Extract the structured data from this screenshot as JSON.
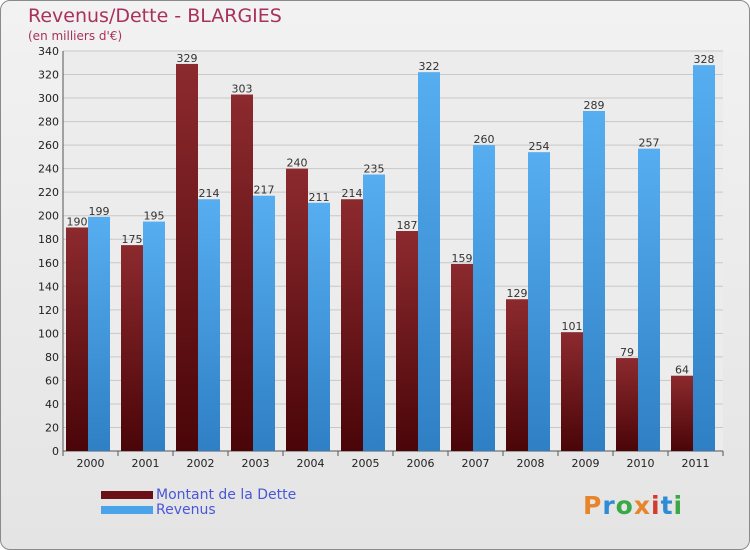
{
  "title": "Revenus/Dette - BLARGIES",
  "subtitle": "(en milliers d'€)",
  "colors": {
    "debt": "#7a1a1e",
    "revenue": "#4aa3e8",
    "title": "#a8315d"
  },
  "logo": {
    "text": "Proxiti",
    "letters": [
      "P",
      "r",
      "o",
      "x",
      "i",
      "t",
      "i"
    ],
    "colors": [
      "#e8842a",
      "#2f8bd6",
      "#3aa845",
      "#e8842a",
      "#d33b30",
      "#2f8bd6",
      "#3aa845"
    ]
  },
  "chart_data": {
    "type": "bar",
    "title": "Revenus/Dette - BLARGIES",
    "subtitle": "(en milliers d'€)",
    "categories": [
      "2000",
      "2001",
      "2002",
      "2003",
      "2004",
      "2005",
      "2006",
      "2007",
      "2008",
      "2009",
      "2010",
      "2011"
    ],
    "series": [
      {
        "name": "Montant de la Dette",
        "values": [
          190,
          175,
          329,
          303,
          240,
          214,
          187,
          159,
          129,
          101,
          79,
          64
        ]
      },
      {
        "name": "Revenus",
        "values": [
          199,
          195,
          214,
          217,
          211,
          235,
          322,
          260,
          254,
          289,
          257,
          328
        ]
      }
    ],
    "ylim": [
      0,
      340
    ],
    "yticks": [
      0,
      20,
      40,
      60,
      80,
      100,
      120,
      140,
      160,
      180,
      200,
      220,
      240,
      260,
      280,
      300,
      320,
      340
    ],
    "grid": true,
    "legend": "bottom-left"
  }
}
